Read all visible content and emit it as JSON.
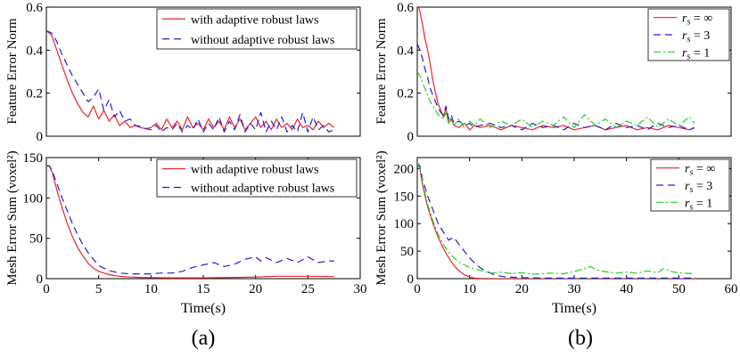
{
  "colors": {
    "red": "#e8262b",
    "blue": "#1f1fd6",
    "green": "#22d31a",
    "axis": "#000000"
  },
  "captions": {
    "a": "(a)",
    "b": "(b)"
  },
  "chart_data": [
    {
      "id": "a-top",
      "type": "line",
      "title": "",
      "xlabel": "",
      "ylabel": "Feature Error Norm",
      "xlim": [
        0,
        30
      ],
      "ylim": [
        0,
        0.6
      ],
      "xticks": [],
      "yticks": [
        0,
        0.2,
        0.4,
        0.6
      ],
      "ytick_labels": [
        "0",
        "0.2",
        "0.4",
        "0.6"
      ],
      "legend": "top-right",
      "series": [
        {
          "name": "with adaptive robust laws",
          "color": "#e8262b",
          "style": "solid",
          "x": [
            0,
            0.5,
            1,
            1.5,
            2,
            2.5,
            3,
            3.5,
            4,
            4.5,
            5,
            5.5,
            6,
            6.5,
            7,
            7.5,
            8,
            8.5,
            9,
            9.5,
            10,
            10.5,
            11,
            11.5,
            12,
            12.5,
            13,
            13.5,
            14,
            14.5,
            15,
            15.5,
            16,
            16.5,
            17,
            17.5,
            18,
            18.5,
            19,
            19.5,
            20,
            20.5,
            21,
            21.5,
            22,
            22.5,
            23,
            23.5,
            24,
            24.5,
            25,
            25.5,
            26,
            26.5,
            27,
            27.5
          ],
          "y": [
            0.49,
            0.47,
            0.4,
            0.33,
            0.26,
            0.2,
            0.15,
            0.11,
            0.09,
            0.14,
            0.08,
            0.12,
            0.07,
            0.1,
            0.05,
            0.07,
            0.04,
            0.05,
            0.04,
            0.035,
            0.04,
            0.06,
            0.03,
            0.08,
            0.04,
            0.07,
            0.03,
            0.09,
            0.04,
            0.06,
            0.03,
            0.08,
            0.04,
            0.07,
            0.03,
            0.09,
            0.04,
            0.08,
            0.03,
            0.06,
            0.09,
            0.04,
            0.07,
            0.03,
            0.08,
            0.04,
            0.06,
            0.03,
            0.08,
            0.04,
            0.05,
            0.03,
            0.07,
            0.04,
            0.06,
            0.04
          ]
        },
        {
          "name": "without adaptive robust laws",
          "color": "#1f1fd6",
          "style": "dashed",
          "x": [
            0,
            0.5,
            1,
            1.5,
            2,
            2.5,
            3,
            3.5,
            4,
            4.5,
            5,
            5.5,
            6,
            6.5,
            7,
            7.5,
            8,
            8.5,
            9,
            9.5,
            10,
            10.5,
            11,
            11.5,
            12,
            12.5,
            13,
            13.5,
            14,
            14.5,
            15,
            15.5,
            16,
            16.5,
            17,
            17.5,
            18,
            18.5,
            19,
            19.5,
            20,
            20.5,
            21,
            21.5,
            22,
            22.5,
            23,
            23.5,
            24,
            24.5,
            25,
            25.5,
            26,
            26.5,
            27,
            27.5
          ],
          "y": [
            0.49,
            0.48,
            0.44,
            0.38,
            0.33,
            0.28,
            0.24,
            0.2,
            0.16,
            0.18,
            0.22,
            0.12,
            0.17,
            0.09,
            0.12,
            0.07,
            0.08,
            0.05,
            0.045,
            0.035,
            0.03,
            0.05,
            0.02,
            0.04,
            0.03,
            0.06,
            0.02,
            0.05,
            0.03,
            0.08,
            0.02,
            0.06,
            0.03,
            0.09,
            0.02,
            0.07,
            0.03,
            0.1,
            0.02,
            0.06,
            0.03,
            0.11,
            0.02,
            0.07,
            0.03,
            0.09,
            0.02,
            0.05,
            0.02,
            0.11,
            0.02,
            0.09,
            0.03,
            0.05,
            0.02,
            0.03
          ]
        }
      ]
    },
    {
      "id": "a-bottom",
      "type": "line",
      "title": "",
      "xlabel": "Time(s)",
      "ylabel": "Mesh Error Sum (voxel²)",
      "xlim": [
        0,
        30
      ],
      "ylim": [
        0,
        150
      ],
      "xticks": [
        0,
        5,
        10,
        15,
        20,
        25,
        30
      ],
      "xtick_labels": [
        "0",
        "5",
        "10",
        "15",
        "20",
        "25",
        "30"
      ],
      "yticks": [
        0,
        50,
        100,
        150
      ],
      "ytick_labels": [
        "0",
        "50",
        "100",
        "150"
      ],
      "legend": "top-right",
      "series": [
        {
          "name": "with adaptive robust laws",
          "color": "#e8262b",
          "style": "solid",
          "x": [
            0,
            0.3,
            0.6,
            1,
            1.5,
            2,
            2.5,
            3,
            3.5,
            4,
            4.5,
            5,
            6,
            7,
            8,
            9,
            10,
            12,
            15,
            18,
            20,
            22,
            25,
            27.5
          ],
          "y": [
            140,
            140,
            130,
            110,
            88,
            68,
            52,
            38,
            28,
            19,
            13,
            9,
            5,
            3,
            2,
            1.5,
            1.2,
            1,
            1,
            1.5,
            2,
            3,
            3,
            2.5
          ]
        },
        {
          "name": "without adaptive robust laws",
          "color": "#1f1fd6",
          "style": "dashed",
          "x": [
            0,
            0.3,
            0.6,
            1,
            1.5,
            2,
            2.5,
            3,
            3.5,
            4,
            4.5,
            5,
            6,
            7,
            8,
            9,
            10,
            11,
            12,
            13,
            14,
            15,
            16,
            17,
            18,
            19,
            20,
            20.5,
            21,
            22,
            23,
            24,
            25,
            26,
            27,
            27.5
          ],
          "y": [
            140,
            140,
            132,
            118,
            100,
            84,
            68,
            54,
            42,
            32,
            24,
            16,
            10,
            7,
            6,
            6,
            6,
            7,
            7,
            9,
            14,
            17,
            20,
            15,
            18,
            24,
            27,
            22,
            26,
            20,
            25,
            20,
            27,
            20,
            22,
            22
          ]
        }
      ]
    },
    {
      "id": "b-top",
      "type": "line",
      "title": "",
      "xlabel": "",
      "ylabel": "Feature Error Norm",
      "xlim": [
        0,
        60
      ],
      "ylim": [
        0,
        0.6
      ],
      "xticks": [],
      "yticks": [
        0,
        0.2,
        0.4,
        0.6
      ],
      "ytick_labels": [
        "0",
        "0.2",
        "0.4",
        "0.6"
      ],
      "legend": "top-right",
      "series": [
        {
          "name": "rs=∞",
          "label_main": "r",
          "label_sub": "s",
          "label_rhs": "= ∞",
          "color": "#e8262b",
          "style": "solid",
          "x": [
            0,
            0.5,
            1,
            1.5,
            2,
            2.5,
            3,
            3.5,
            4,
            4.5,
            5,
            5.5,
            6,
            6.5,
            7,
            8,
            9,
            10,
            11,
            12,
            14,
            16,
            18,
            20,
            22,
            24,
            26,
            28,
            30,
            32,
            34,
            36,
            38,
            40,
            42,
            44,
            46,
            48,
            50,
            52,
            53
          ],
          "y": [
            0.62,
            0.58,
            0.52,
            0.45,
            0.4,
            0.33,
            0.26,
            0.2,
            0.15,
            0.12,
            0.09,
            0.13,
            0.06,
            0.08,
            0.05,
            0.04,
            0.06,
            0.03,
            0.05,
            0.04,
            0.05,
            0.03,
            0.05,
            0.04,
            0.03,
            0.05,
            0.04,
            0.05,
            0.03,
            0.04,
            0.05,
            0.03,
            0.04,
            0.05,
            0.03,
            0.04,
            0.03,
            0.05,
            0.04,
            0.03,
            0.04
          ]
        },
        {
          "name": "rs=3",
          "label_main": "r",
          "label_sub": "s",
          "label_rhs": "= 3",
          "color": "#1f1fd6",
          "style": "dashed",
          "x": [
            0,
            0.5,
            1,
            1.5,
            2,
            2.5,
            3,
            3.5,
            4,
            4.5,
            5,
            5.5,
            6,
            6.5,
            7,
            8,
            9,
            10,
            11,
            12,
            14,
            16,
            18,
            20,
            22,
            24,
            26,
            28,
            30,
            32,
            34,
            36,
            38,
            40,
            42,
            44,
            46,
            48,
            50,
            52,
            53
          ],
          "y": [
            0.43,
            0.4,
            0.36,
            0.31,
            0.27,
            0.22,
            0.19,
            0.16,
            0.13,
            0.11,
            0.1,
            0.14,
            0.08,
            0.1,
            0.06,
            0.07,
            0.05,
            0.06,
            0.04,
            0.05,
            0.06,
            0.04,
            0.05,
            0.03,
            0.06,
            0.04,
            0.05,
            0.03,
            0.06,
            0.04,
            0.05,
            0.03,
            0.06,
            0.04,
            0.05,
            0.03,
            0.06,
            0.04,
            0.05,
            0.03,
            0.04
          ]
        },
        {
          "name": "rs=1",
          "label_main": "r",
          "label_sub": "s",
          "label_rhs": "= 1",
          "color": "#22d31a",
          "style": "dashdot",
          "x": [
            0,
            0.5,
            1,
            1.5,
            2,
            2.5,
            3,
            3.5,
            4,
            4.5,
            5,
            5.5,
            6,
            6.5,
            7,
            8,
            9,
            10,
            11,
            12,
            14,
            16,
            18,
            20,
            22,
            24,
            26,
            28,
            30,
            32,
            34,
            36,
            38,
            40,
            42,
            44,
            46,
            48,
            50,
            52,
            53
          ],
          "y": [
            0.3,
            0.28,
            0.25,
            0.22,
            0.19,
            0.16,
            0.14,
            0.12,
            0.1,
            0.09,
            0.08,
            0.11,
            0.06,
            0.09,
            0.05,
            0.08,
            0.04,
            0.07,
            0.05,
            0.08,
            0.04,
            0.07,
            0.05,
            0.08,
            0.04,
            0.07,
            0.05,
            0.09,
            0.04,
            0.1,
            0.05,
            0.08,
            0.04,
            0.07,
            0.05,
            0.09,
            0.04,
            0.08,
            0.05,
            0.09,
            0.06
          ]
        }
      ]
    },
    {
      "id": "b-bottom",
      "type": "line",
      "title": "",
      "xlabel": "Time(s)",
      "ylabel": "Mesh Error Sum (voxel²)",
      "xlim": [
        0,
        60
      ],
      "ylim": [
        0,
        220
      ],
      "xticks": [
        0,
        10,
        20,
        30,
        40,
        50,
        60
      ],
      "xtick_labels": [
        "0",
        "10",
        "20",
        "30",
        "40",
        "50",
        "60"
      ],
      "yticks": [
        0,
        50,
        100,
        150,
        200
      ],
      "ytick_labels": [
        "0",
        "50",
        "100",
        "150",
        "200"
      ],
      "legend": "top-right",
      "series": [
        {
          "name": "rs=∞",
          "label_main": "r",
          "label_sub": "s",
          "label_rhs": "= ∞",
          "color": "#e8262b",
          "style": "solid",
          "x": [
            0,
            0.5,
            1,
            2,
            3,
            4,
            5,
            6,
            7,
            8,
            9,
            10,
            11,
            12,
            15,
            20,
            30,
            40,
            50,
            53
          ],
          "y": [
            210,
            200,
            170,
            130,
            100,
            75,
            55,
            38,
            24,
            14,
            7,
            3,
            1,
            0.5,
            0,
            0,
            0,
            0,
            0,
            0
          ]
        },
        {
          "name": "rs=3",
          "label_main": "r",
          "label_sub": "s",
          "label_rhs": "= 3",
          "color": "#1f1fd6",
          "style": "dashed",
          "x": [
            0,
            0.5,
            1,
            2,
            3,
            4,
            5,
            6,
            7,
            8,
            9,
            10,
            11,
            12,
            13,
            14,
            15,
            17,
            20,
            25,
            30,
            40,
            50,
            53
          ],
          "y": [
            210,
            205,
            180,
            150,
            125,
            100,
            85,
            70,
            75,
            62,
            50,
            38,
            28,
            20,
            14,
            10,
            6,
            3,
            2,
            1,
            1,
            1,
            1,
            1
          ]
        },
        {
          "name": "rs=1",
          "label_main": "r",
          "label_sub": "s",
          "label_rhs": "= 1",
          "color": "#22d31a",
          "style": "dashdot",
          "x": [
            0,
            0.5,
            1,
            2,
            3,
            4,
            5,
            6,
            7,
            8,
            9,
            10,
            12,
            14,
            16,
            18,
            20,
            22,
            25,
            28,
            30,
            32,
            33,
            35,
            38,
            40,
            42,
            44,
            46,
            47,
            49,
            51,
            53
          ],
          "y": [
            210,
            200,
            175,
            135,
            105,
            80,
            62,
            48,
            38,
            30,
            25,
            20,
            15,
            10,
            12,
            9,
            11,
            8,
            10,
            9,
            13,
            18,
            22,
            14,
            10,
            12,
            10,
            14,
            11,
            18,
            12,
            10,
            9
          ]
        }
      ]
    }
  ]
}
